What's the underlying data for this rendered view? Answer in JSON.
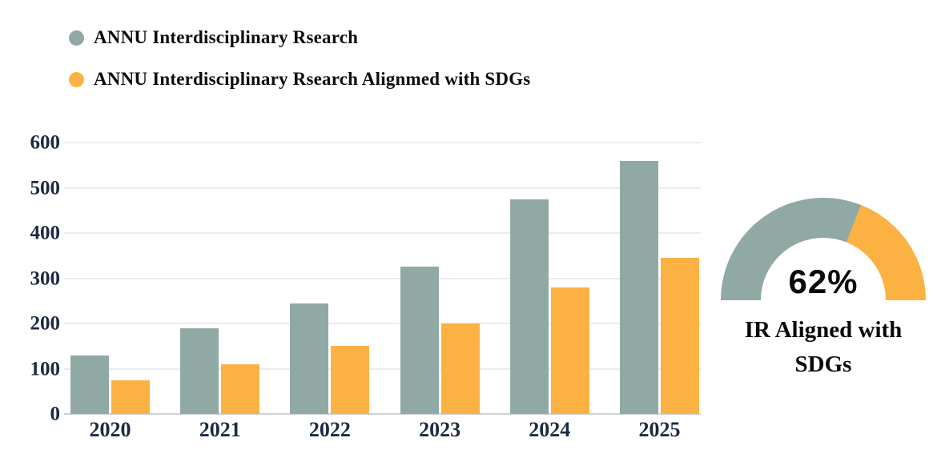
{
  "chart_data": [
    {
      "type": "bar",
      "title": "",
      "categories": [
        "2020",
        "2021",
        "2022",
        "2023",
        "2024",
        "2025"
      ],
      "series": [
        {
          "name": "ANNU Interdisciplinary Rsearch",
          "color": "#91A9A4",
          "values": [
            130,
            190,
            245,
            325,
            475,
            560
          ]
        },
        {
          "name": "ANNU Interdisciplinary Rsearch Alignmed with SDGs",
          "color": "#FCB242",
          "values": [
            75,
            110,
            150,
            200,
            280,
            345
          ]
        }
      ],
      "xlabel": "",
      "ylabel": "",
      "ylim": [
        0,
        600
      ],
      "ytick_step": 100,
      "grid": true,
      "legend_position": "top-left",
      "axis_label_color": "#1B2A41",
      "gridline_color": "#E9EDF0",
      "baseline_color": "#CDD2D7"
    },
    {
      "type": "gauge",
      "value_pct": 62,
      "value_label": "62%",
      "caption_line1": "IR Aligned with",
      "caption_line2": "SDGs",
      "filled_color": "#91A9A4",
      "remainder_color": "#FCB242",
      "start_angle_deg": 180,
      "sweep_deg": 180
    }
  ]
}
